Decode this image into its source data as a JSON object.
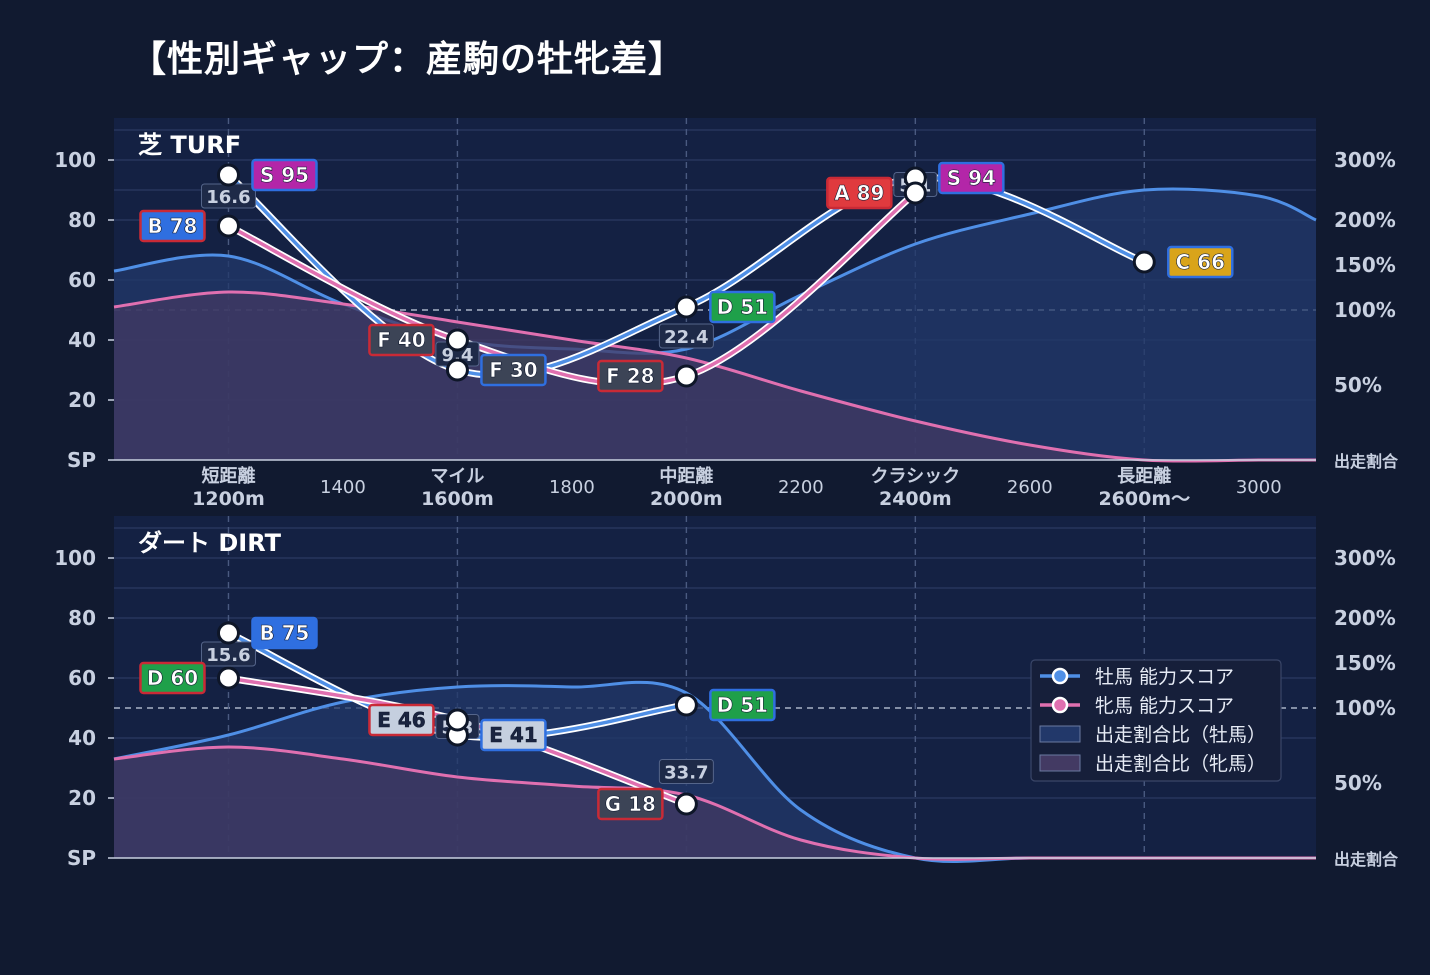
{
  "title": "【性別ギャップ：産駒の牡牝差】",
  "colors": {
    "background": "#111a30",
    "panel": "#142143",
    "male_line": "#4f8fe6",
    "female_line": "#e070b0",
    "male_fill": "#22386a",
    "female_fill": "#433a63",
    "grade_S": "#b326a8",
    "grade_A": "#e03a3e",
    "grade_B": "#2f6fe0",
    "grade_C": "#d9a41a",
    "grade_D": "#1fa04a",
    "grade_E": "#c5cfdf",
    "grade_F": "#3c4456",
    "grade_G": "#3c4456"
  },
  "legend": [
    {
      "label": "牡馬 能力スコア",
      "kind": "line",
      "color": "#4f8fe6"
    },
    {
      "label": "牝馬 能力スコア",
      "kind": "line",
      "color": "#e070b0"
    },
    {
      "label": "出走割合比（牡馬）",
      "kind": "fill",
      "color": "#22386a"
    },
    {
      "label": "出走割合比（牝馬）",
      "kind": "fill",
      "color": "#433a63"
    }
  ],
  "chart_data": [
    {
      "type": "line",
      "panel": "芝 TURF",
      "x_labels": [
        {
          "x": 1200,
          "lines": [
            "短距離",
            "1200m"
          ],
          "bold": true
        },
        {
          "x": 1400,
          "lines": [
            "1400"
          ],
          "bold": false
        },
        {
          "x": 1600,
          "lines": [
            "マイル",
            "1600m"
          ],
          "bold": true
        },
        {
          "x": 1800,
          "lines": [
            "1800"
          ],
          "bold": false
        },
        {
          "x": 2000,
          "lines": [
            "中距離",
            "2000m"
          ],
          "bold": true
        },
        {
          "x": 2200,
          "lines": [
            "2200"
          ],
          "bold": false
        },
        {
          "x": 2400,
          "lines": [
            "クラシック",
            "2400m"
          ],
          "bold": true
        },
        {
          "x": 2600,
          "lines": [
            "2600"
          ],
          "bold": false
        },
        {
          "x": 2800,
          "lines": [
            "長距離",
            "2600m〜"
          ],
          "bold": true
        },
        {
          "x": 3000,
          "lines": [
            "3000"
          ],
          "bold": false
        }
      ],
      "xlim": [
        1000,
        3100
      ],
      "y_left_ticks": [
        "SP",
        "20",
        "40",
        "60",
        "80",
        "100"
      ],
      "y_left_range": [
        0,
        110
      ],
      "y_right_ticks": [
        "出走割合",
        "50%",
        "100%",
        "150%",
        "200%",
        "300%"
      ],
      "male_scores": [
        {
          "x": 1200,
          "y": 95,
          "grade": "S 95"
        },
        {
          "x": 1600,
          "y": 30,
          "grade": "F 30"
        },
        {
          "x": 2000,
          "y": 51,
          "grade": "D 51"
        },
        {
          "x": 2400,
          "y": 94,
          "grade": "S 94"
        },
        {
          "x": 2800,
          "y": 66,
          "grade": "C 66"
        }
      ],
      "female_scores": [
        {
          "x": 1200,
          "y": 78,
          "grade": "B 78"
        },
        {
          "x": 1600,
          "y": 40,
          "grade": "F 40"
        },
        {
          "x": 2000,
          "y": 28,
          "grade": "F 28"
        },
        {
          "x": 2400,
          "y": 89,
          "grade": "A 89"
        }
      ],
      "gap_labels": [
        {
          "x": 1200,
          "text": "16.6"
        },
        {
          "x": 1600,
          "text": "9.4"
        },
        {
          "x": 2000,
          "text": "22.4"
        },
        {
          "x": 2400,
          "text": "5.1"
        }
      ],
      "male_ratio_fill": [
        [
          1000,
          63
        ],
        [
          1200,
          68
        ],
        [
          1400,
          52
        ],
        [
          1600,
          40
        ],
        [
          1800,
          37
        ],
        [
          2000,
          37
        ],
        [
          2200,
          55
        ],
        [
          2400,
          72
        ],
        [
          2600,
          82
        ],
        [
          2800,
          90
        ],
        [
          3000,
          88
        ],
        [
          3100,
          80
        ]
      ],
      "female_ratio_fill": [
        [
          1000,
          51
        ],
        [
          1200,
          56
        ],
        [
          1400,
          52
        ],
        [
          1600,
          46
        ],
        [
          1800,
          40
        ],
        [
          2000,
          34
        ],
        [
          2200,
          23
        ],
        [
          2400,
          13
        ],
        [
          2600,
          5
        ],
        [
          2800,
          0
        ],
        [
          3000,
          0
        ],
        [
          3100,
          0
        ]
      ]
    },
    {
      "type": "line",
      "panel": "ダート DIRT",
      "x_labels": [],
      "xlim": [
        1000,
        3100
      ],
      "y_left_ticks": [
        "SP",
        "20",
        "40",
        "60",
        "80",
        "100"
      ],
      "y_left_range": [
        0,
        110
      ],
      "y_right_ticks": [
        "出走割合",
        "50%",
        "100%",
        "150%",
        "200%",
        "300%"
      ],
      "male_scores": [
        {
          "x": 1200,
          "y": 75,
          "grade": "B 75"
        },
        {
          "x": 1600,
          "y": 41,
          "grade": "E 41"
        },
        {
          "x": 2000,
          "y": 51,
          "grade": "D 51"
        }
      ],
      "female_scores": [
        {
          "x": 1200,
          "y": 60,
          "grade": "D 60"
        },
        {
          "x": 1600,
          "y": 46,
          "grade": "E 46"
        },
        {
          "x": 2000,
          "y": 18,
          "grade": "G 18"
        }
      ],
      "gap_labels": [
        {
          "x": 1200,
          "text": "15.6"
        },
        {
          "x": 1600,
          "text": "5.3"
        },
        {
          "x": 2000,
          "text": "33.7"
        }
      ],
      "male_ratio_fill": [
        [
          1000,
          33
        ],
        [
          1200,
          41
        ],
        [
          1400,
          52
        ],
        [
          1600,
          57
        ],
        [
          1800,
          57
        ],
        [
          2000,
          55
        ],
        [
          2200,
          16
        ],
        [
          2400,
          0
        ],
        [
          2600,
          0
        ],
        [
          2800,
          0
        ],
        [
          3000,
          0
        ],
        [
          3100,
          0
        ]
      ],
      "female_ratio_fill": [
        [
          1000,
          33
        ],
        [
          1200,
          37
        ],
        [
          1400,
          33
        ],
        [
          1600,
          27
        ],
        [
          1800,
          24
        ],
        [
          2000,
          21
        ],
        [
          2200,
          6
        ],
        [
          2400,
          0
        ],
        [
          2600,
          0
        ],
        [
          2800,
          0
        ],
        [
          3000,
          0
        ],
        [
          3100,
          0
        ]
      ]
    }
  ]
}
